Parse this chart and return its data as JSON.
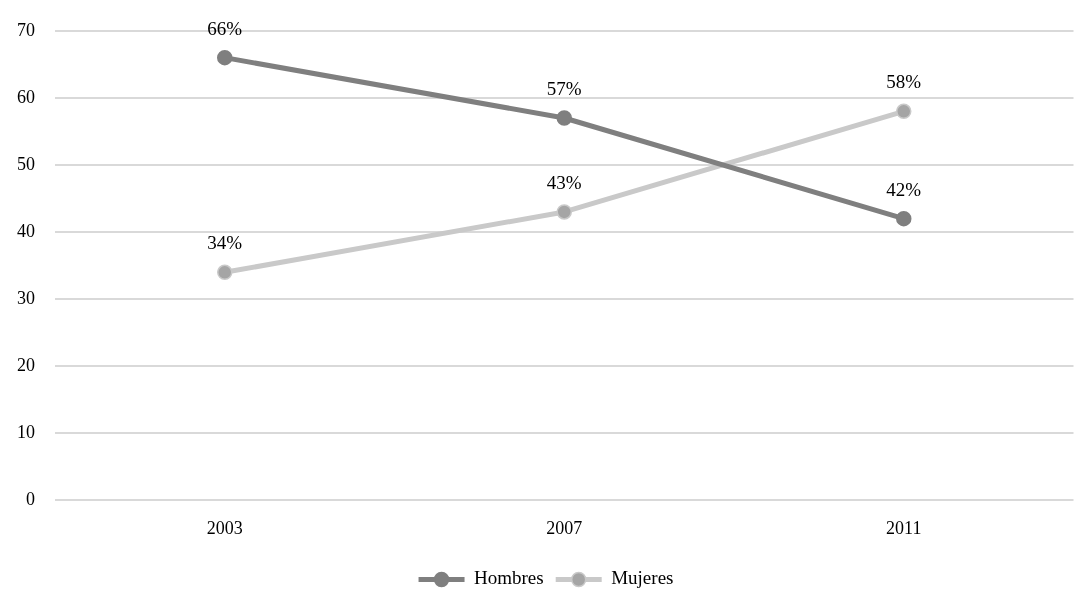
{
  "chart_data": {
    "type": "line",
    "categories": [
      "2003",
      "2007",
      "2011"
    ],
    "series": [
      {
        "name": "Hombres",
        "color": "#7f7f7f",
        "colors": [
          "#7f7f7f",
          "#7f7f7f",
          "#7f7f7f"
        ],
        "values": [
          66,
          57,
          42
        ],
        "value_labels": [
          "66%",
          "57%",
          "42%"
        ]
      },
      {
        "name": "Mujeres",
        "color": "#c9c9c9",
        "colors": [
          "#a5a5a5",
          "#a5a5a5",
          "#a5a5a5"
        ],
        "values": [
          34,
          43,
          58
        ],
        "value_labels": [
          "34%",
          "43%",
          "58%"
        ]
      }
    ],
    "ylim": [
      0,
      70
    ],
    "yticks": [
      0,
      10,
      20,
      30,
      40,
      50,
      60,
      70
    ],
    "grid": "y",
    "legend": "bottom",
    "marker": "circle",
    "line_style": "solid"
  }
}
